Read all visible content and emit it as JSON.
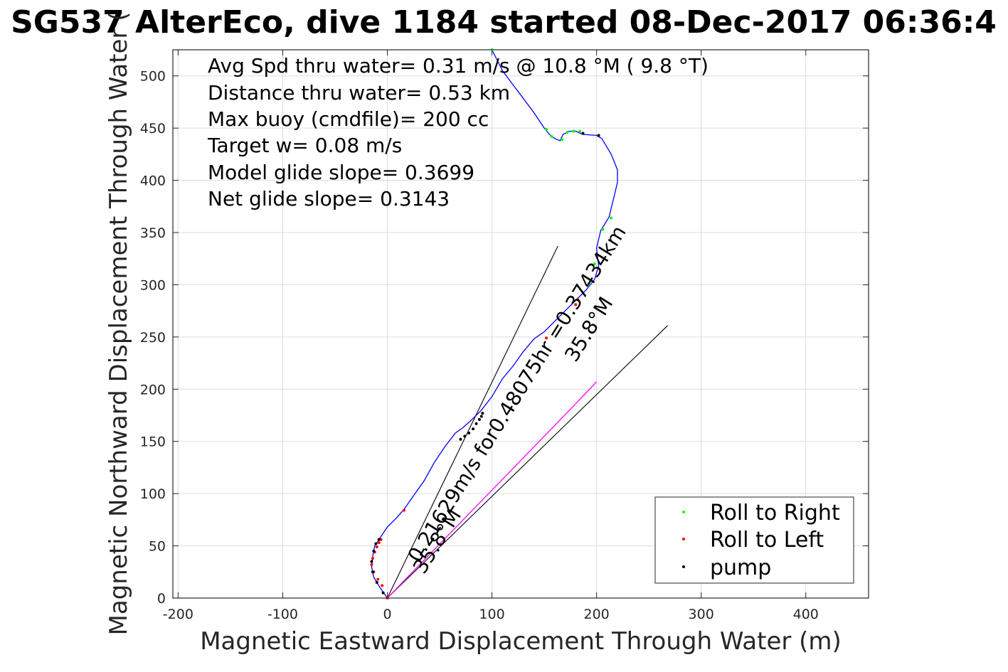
{
  "chart_data": {
    "type": "scatter",
    "title": "SG537 AlterEco, dive 1184 started 08-Dec-2017 06:36:4",
    "xlabel": "Magnetic Eastward Displacement Through Water (m)",
    "ylabel": "Magnetic Northward Displacement Through Water (",
    "xlim": [
      -205,
      460
    ],
    "ylim": [
      0,
      525
    ],
    "xticks": [
      -200,
      -100,
      0,
      100,
      200,
      300,
      400
    ],
    "yticks": [
      0,
      50,
      100,
      150,
      200,
      250,
      300,
      350,
      400,
      450,
      500
    ],
    "xtick_labels": [
      "-200",
      "-100",
      "0",
      "100",
      "200",
      "300",
      "400"
    ],
    "ytick_labels": [
      "0",
      "50",
      "100",
      "150",
      "200",
      "250",
      "300",
      "350",
      "400",
      "450",
      "500"
    ],
    "grid": true,
    "stats": [
      "Avg Spd thru water=  0.31 m/s @  10.8 °M (  9.8 °T)",
      "Distance thru water=  0.53 km",
      "Max buoy (cmdfile)= 200 cc",
      "Target w= 0.08 m/s",
      "Model glide slope= 0.3699",
      "Net glide slope= 0.3143"
    ],
    "track": {
      "color": "#0000ff",
      "x": [
        0,
        -7,
        -13,
        -15,
        -14,
        -12,
        -8,
        -4,
        0,
        8,
        16,
        25,
        35,
        45,
        55,
        65,
        72,
        80,
        90,
        100,
        110,
        120,
        130,
        140,
        150,
        160,
        170,
        180,
        190,
        198,
        202,
        200,
        204,
        212,
        220,
        220,
        214,
        205,
        200,
        187,
        180,
        174,
        168,
        165,
        160,
        155,
        150,
        140,
        125,
        110,
        100
      ],
      "y": [
        0,
        10,
        20,
        30,
        40,
        50,
        56,
        62,
        68,
        76,
        85,
        98,
        112,
        130,
        145,
        158,
        163,
        170,
        180,
        193,
        210,
        222,
        236,
        248,
        255,
        265,
        275,
        285,
        295,
        305,
        318,
        335,
        352,
        365,
        398,
        410,
        425,
        440,
        443,
        444,
        447,
        447,
        444,
        438,
        440,
        444,
        450,
        465,
        485,
        505,
        525
      ]
    },
    "vmd_track": {
      "color": "#ff00ff",
      "x": [
        0,
        30,
        60,
        90,
        120,
        150,
        180,
        200
      ],
      "y": [
        0,
        31,
        62,
        93,
        124,
        155,
        186,
        207
      ]
    },
    "series": [
      {
        "name": "Roll to Right",
        "color": "#00ff00",
        "x": [
          100,
          152,
          157,
          167,
          172,
          178,
          184,
          193,
          198,
          206,
          214
        ],
        "y": [
          525,
          449,
          442,
          439,
          446,
          447,
          447,
          301,
          320,
          353,
          364
        ]
      },
      {
        "name": "Roll to Left",
        "color": "#ff0000",
        "x": [
          0,
          -5,
          -9,
          -13,
          -15,
          -14,
          -12,
          -10,
          -8,
          -6,
          16,
          152,
          180,
          182
        ],
        "y": [
          0,
          12,
          18,
          25,
          32,
          38,
          44,
          49,
          53,
          56,
          84,
          249,
          281,
          286
        ]
      },
      {
        "name": "pump",
        "color": "#000000",
        "x": [
          -4,
          -10,
          -14,
          -15,
          -13,
          -11,
          -8,
          70,
          74,
          78,
          82,
          85,
          88,
          90,
          91,
          187,
          202
        ],
        "y": [
          5,
          15,
          25,
          35,
          45,
          52,
          56,
          152,
          155,
          158,
          162,
          167,
          171,
          174,
          177,
          445,
          443
        ]
      }
    ],
    "reference_lines": [
      {
        "x": [
          0,
          163
        ],
        "y": [
          0,
          337
        ]
      },
      {
        "x": [
          0,
          268
        ],
        "y": [
          0,
          261
        ]
      }
    ],
    "annotations": [
      {
        "text": "0.21629m/s for0.48075hr =0.37434km",
        "x": 30,
        "y": 33,
        "rotation_deg": -58
      },
      {
        "text": "35.8°M",
        "x": 35,
        "y": 22,
        "rotation_deg": -58
      },
      {
        "text": "35.8°M",
        "x": 180,
        "y": 225,
        "rotation_deg": -58
      }
    ],
    "legend": {
      "position": "bottom-right",
      "entries": [
        "Roll to Right",
        "Roll to Left",
        "pump"
      ]
    }
  }
}
